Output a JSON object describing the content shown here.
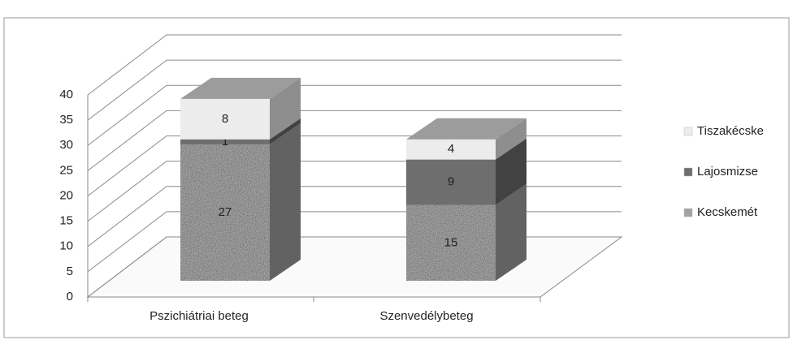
{
  "chart_data": {
    "type": "bar3d_stacked",
    "categories": [
      "Pszichiátriai beteg",
      "Szenvedélybeteg"
    ],
    "series": [
      {
        "name": "Kecskemét",
        "color": "#a3a3a3",
        "values": [
          27,
          15
        ]
      },
      {
        "name": "Lajosmizse",
        "color": "#6e6e6e",
        "values": [
          1,
          9
        ]
      },
      {
        "name": "Tiszakécske",
        "color": "#ececec",
        "values": [
          8,
          4
        ]
      }
    ],
    "ylim": [
      0,
      40
    ],
    "yticks": [
      0,
      5,
      10,
      15,
      20,
      25,
      30,
      35,
      40
    ],
    "grid": true,
    "legend": "right"
  }
}
